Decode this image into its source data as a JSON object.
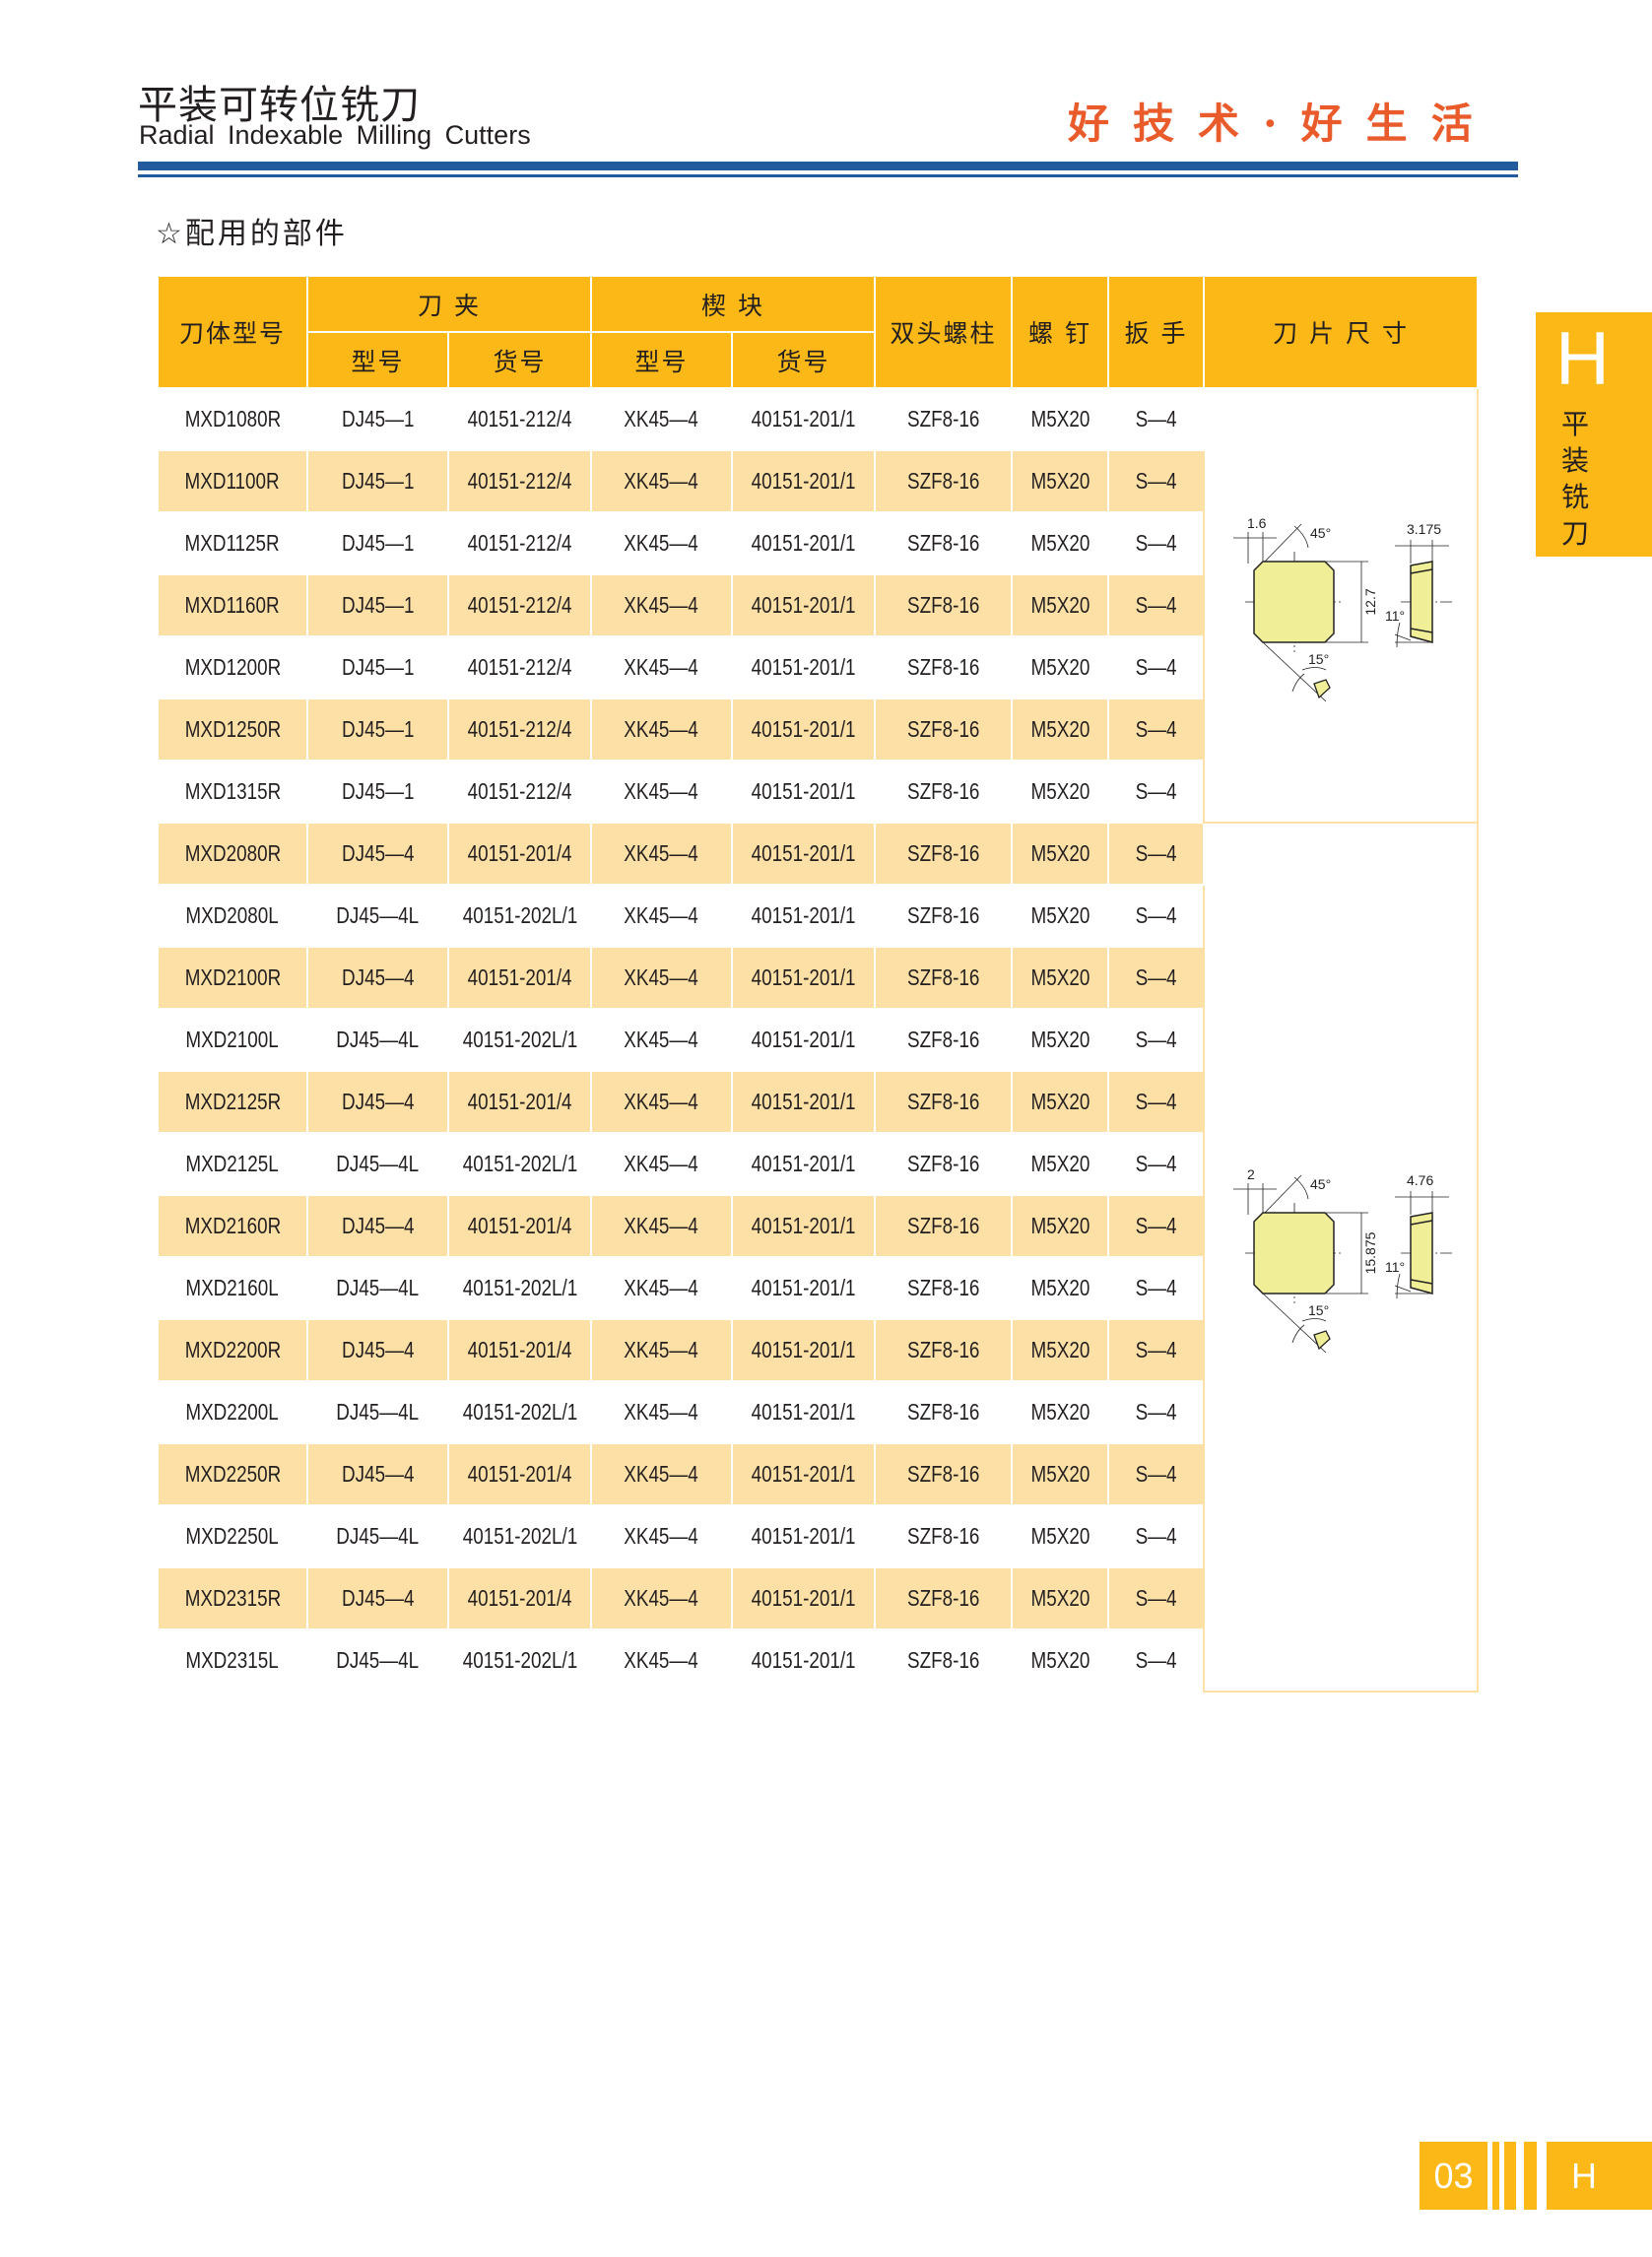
{
  "header": {
    "title_cn": "平装可转位铣刀",
    "title_en": "Radial Indexable Milling Cutters",
    "slogan": "好技术·好生活"
  },
  "section_title": "☆配用的部件",
  "table": {
    "headers": {
      "body_model": "刀体型号",
      "holder": "刀 夹",
      "wedge": "楔 块",
      "stud": "双头螺柱",
      "screw": "螺 钉",
      "wrench": "扳 手",
      "insert_size": "刀 片 尺 寸",
      "model": "型号",
      "part_no": "货号"
    },
    "rows": [
      [
        "MXD1080R",
        "DJ45—1",
        "40151-212/4",
        "XK45—4",
        "40151-201/1",
        "SZF8-16",
        "M5X20",
        "S—4"
      ],
      [
        "MXD1100R",
        "DJ45—1",
        "40151-212/4",
        "XK45—4",
        "40151-201/1",
        "SZF8-16",
        "M5X20",
        "S—4"
      ],
      [
        "MXD1125R",
        "DJ45—1",
        "40151-212/4",
        "XK45—4",
        "40151-201/1",
        "SZF8-16",
        "M5X20",
        "S—4"
      ],
      [
        "MXD1160R",
        "DJ45—1",
        "40151-212/4",
        "XK45—4",
        "40151-201/1",
        "SZF8-16",
        "M5X20",
        "S—4"
      ],
      [
        "MXD1200R",
        "DJ45—1",
        "40151-212/4",
        "XK45—4",
        "40151-201/1",
        "SZF8-16",
        "M5X20",
        "S—4"
      ],
      [
        "MXD1250R",
        "DJ45—1",
        "40151-212/4",
        "XK45—4",
        "40151-201/1",
        "SZF8-16",
        "M5X20",
        "S—4"
      ],
      [
        "MXD1315R",
        "DJ45—1",
        "40151-212/4",
        "XK45—4",
        "40151-201/1",
        "SZF8-16",
        "M5X20",
        "S—4"
      ],
      [
        "MXD2080R",
        "DJ45—4",
        "40151-201/4",
        "XK45—4",
        "40151-201/1",
        "SZF8-16",
        "M5X20",
        "S—4"
      ],
      [
        "MXD2080L",
        "DJ45—4L",
        "40151-202L/1",
        "XK45—4",
        "40151-201/1",
        "SZF8-16",
        "M5X20",
        "S—4"
      ],
      [
        "MXD2100R",
        "DJ45—4",
        "40151-201/4",
        "XK45—4",
        "40151-201/1",
        "SZF8-16",
        "M5X20",
        "S—4"
      ],
      [
        "MXD2100L",
        "DJ45—4L",
        "40151-202L/1",
        "XK45—4",
        "40151-201/1",
        "SZF8-16",
        "M5X20",
        "S—4"
      ],
      [
        "MXD2125R",
        "DJ45—4",
        "40151-201/4",
        "XK45—4",
        "40151-201/1",
        "SZF8-16",
        "M5X20",
        "S—4"
      ],
      [
        "MXD2125L",
        "DJ45—4L",
        "40151-202L/1",
        "XK45—4",
        "40151-201/1",
        "SZF8-16",
        "M5X20",
        "S—4"
      ],
      [
        "MXD2160R",
        "DJ45—4",
        "40151-201/4",
        "XK45—4",
        "40151-201/1",
        "SZF8-16",
        "M5X20",
        "S—4"
      ],
      [
        "MXD2160L",
        "DJ45—4L",
        "40151-202L/1",
        "XK45—4",
        "40151-201/1",
        "SZF8-16",
        "M5X20",
        "S—4"
      ],
      [
        "MXD2200R",
        "DJ45—4",
        "40151-201/4",
        "XK45—4",
        "40151-201/1",
        "SZF8-16",
        "M5X20",
        "S—4"
      ],
      [
        "MXD2200L",
        "DJ45—4L",
        "40151-202L/1",
        "XK45—4",
        "40151-201/1",
        "SZF8-16",
        "M5X20",
        "S—4"
      ],
      [
        "MXD2250R",
        "DJ45—4",
        "40151-201/4",
        "XK45—4",
        "40151-201/1",
        "SZF8-16",
        "M5X20",
        "S—4"
      ],
      [
        "MXD2250L",
        "DJ45—4L",
        "40151-202L/1",
        "XK45—4",
        "40151-201/1",
        "SZF8-16",
        "M5X20",
        "S—4"
      ],
      [
        "MXD2315R",
        "DJ45—4",
        "40151-201/4",
        "XK45—4",
        "40151-201/1",
        "SZF8-16",
        "M5X20",
        "S—4"
      ],
      [
        "MXD2315L",
        "DJ45—4L",
        "40151-202L/1",
        "XK45—4",
        "40151-201/1",
        "SZF8-16",
        "M5X20",
        "S—4"
      ]
    ],
    "insert_groups": [
      {
        "row_count": 7,
        "chamfer": "1.6",
        "angle_top": "45°",
        "size": "12.7",
        "thickness": "3.175",
        "clearance": "11°",
        "angle_bottom": "15°"
      },
      {
        "row_count": 14,
        "chamfer": "2",
        "angle_top": "45°",
        "size": "15.875",
        "thickness": "4.76",
        "clearance": "11°",
        "angle_bottom": "15°"
      }
    ]
  },
  "side_tab": {
    "letter": "H",
    "label": "平装铣刀"
  },
  "footer": {
    "page": "03",
    "letter": "H"
  },
  "colors": {
    "accent": "#fbb817",
    "row_alt": "#fde0a5",
    "rule": "#245b9e",
    "slogan": "#ea5b2c",
    "insert_fill": "#f0ee96"
  }
}
